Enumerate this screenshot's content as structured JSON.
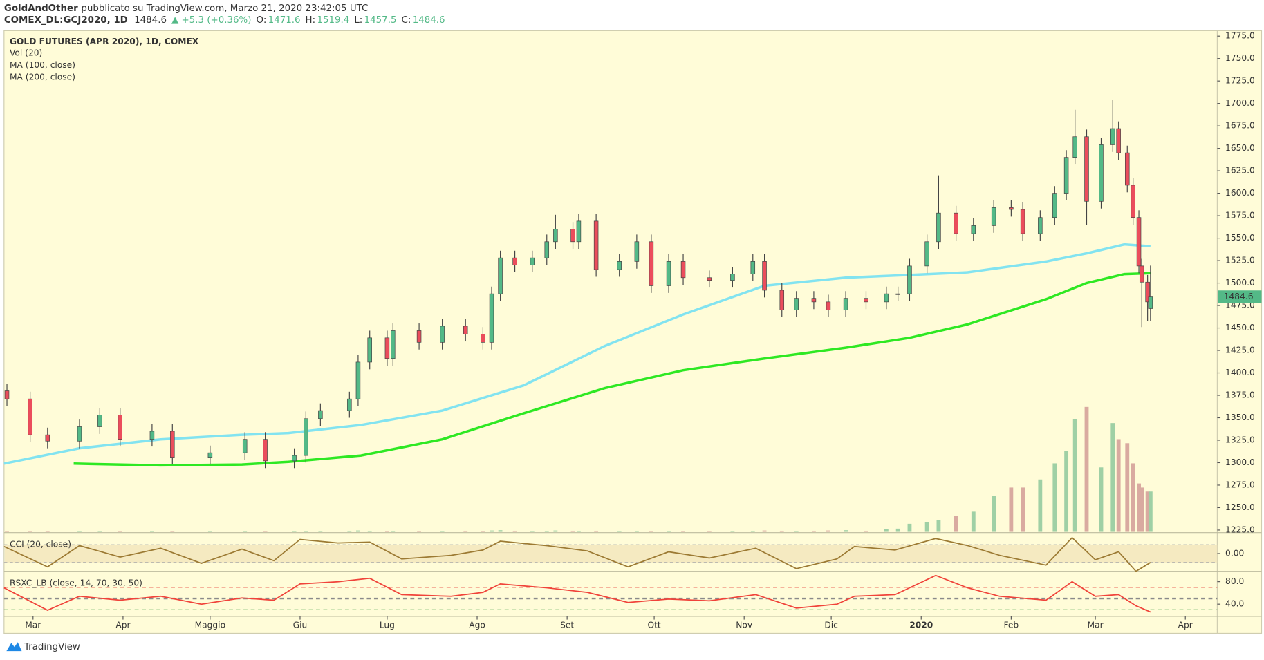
{
  "header": {
    "author": "GoldAndOther",
    "published": "pubblicato su TradingView.com, Marzo 21, 2020 23:42:05 UTC",
    "symbol": "COMEX_DL:GCJ2020, 1D",
    "change": "▲ +5.3 (+0.36%)",
    "ohlc_labels": [
      "O:",
      "H:",
      "L:",
      "C:"
    ]
  },
  "footer": {
    "brand": "TradingView"
  },
  "chart_data": [
    {
      "type": "candlestick",
      "title": "GOLD FUTURES (APR 2020), 1D, COMEX",
      "volume_label": "Vol (20)",
      "x": [
        -9,
        -1,
        5,
        16,
        23,
        30,
        41,
        48,
        61,
        73,
        80,
        90,
        94,
        99,
        109,
        112,
        116,
        122,
        124,
        133,
        141,
        149,
        155,
        158,
        161,
        166,
        172,
        177,
        180,
        186,
        188,
        194,
        202,
        208,
        213,
        219,
        224,
        233,
        241,
        248,
        252,
        258,
        263,
        269,
        274,
        280,
        287,
        294,
        298,
        302,
        308,
        312,
        318,
        324,
        331,
        337,
        341,
        347,
        352,
        356,
        359,
        363,
        368,
        372,
        374,
        377,
        379,
        381,
        382,
        384,
        385
      ],
      "open": [
        1380,
        1371,
        1331,
        1324,
        1340,
        1353,
        1326,
        1335,
        1306,
        1311,
        1326,
        1302,
        1308,
        1349,
        1358,
        1371,
        1412,
        1439,
        1416,
        1447,
        1434,
        1452,
        1443,
        1434,
        1488,
        1528,
        1520,
        1528,
        1546,
        1560,
        1546,
        1569,
        1515,
        1524,
        1546,
        1497,
        1524,
        1506,
        1503,
        1510,
        1524,
        1492,
        1470,
        1483,
        1479,
        1470,
        1483,
        1479,
        1488,
        1488,
        1519,
        1546,
        1578,
        1555,
        1564,
        1584,
        1582,
        1555,
        1573,
        1600,
        1640,
        1663,
        1591,
        1654,
        1672,
        1645,
        1609,
        1573,
        1519,
        1501,
        1471.6
      ],
      "high": [
        1388,
        1379,
        1339,
        1348,
        1361,
        1361,
        1343,
        1343,
        1319,
        1334,
        1334,
        1316,
        1357,
        1366,
        1379,
        1420,
        1447,
        1447,
        1455,
        1455,
        1460,
        1460,
        1451,
        1496,
        1536,
        1536,
        1536,
        1554,
        1576,
        1568,
        1577,
        1577,
        1532,
        1554,
        1554,
        1532,
        1532,
        1514,
        1518,
        1532,
        1532,
        1500,
        1491,
        1491,
        1487,
        1491,
        1491,
        1496,
        1496,
        1527,
        1554,
        1620,
        1586,
        1572,
        1592,
        1592,
        1590,
        1581,
        1608,
        1648,
        1693,
        1671,
        1662,
        1704,
        1680,
        1653,
        1617,
        1581,
        1527,
        1509,
        1519.4
      ],
      "low": [
        1363,
        1323,
        1316,
        1316,
        1332,
        1318,
        1318,
        1298,
        1298,
        1303,
        1294,
        1294,
        1300,
        1341,
        1350,
        1363,
        1404,
        1408,
        1408,
        1426,
        1426,
        1435,
        1426,
        1426,
        1480,
        1512,
        1512,
        1520,
        1538,
        1538,
        1538,
        1507,
        1507,
        1516,
        1489,
        1489,
        1498,
        1495,
        1495,
        1502,
        1484,
        1462,
        1462,
        1471,
        1462,
        1462,
        1471,
        1471,
        1480,
        1480,
        1511,
        1538,
        1547,
        1547,
        1556,
        1574,
        1547,
        1547,
        1565,
        1592,
        1632,
        1565,
        1583,
        1646,
        1637,
        1601,
        1565,
        1511,
        1451,
        1458,
        1457.5
      ],
      "close": [
        1371,
        1331,
        1324,
        1340,
        1353,
        1326,
        1335,
        1306,
        1311,
        1326,
        1302,
        1308,
        1349,
        1358,
        1371,
        1412,
        1439,
        1416,
        1447,
        1434,
        1452,
        1443,
        1434,
        1488,
        1528,
        1520,
        1528,
        1546,
        1560,
        1546,
        1569,
        1515,
        1524,
        1546,
        1497,
        1524,
        1506,
        1503,
        1510,
        1524,
        1492,
        1470,
        1483,
        1479,
        1470,
        1483,
        1479,
        1488,
        1488,
        1519,
        1546,
        1578,
        1555,
        1564,
        1584,
        1582,
        1555,
        1573,
        1600,
        1640,
        1663,
        1591,
        1654,
        1672,
        1645,
        1609,
        1573,
        1519,
        1501,
        1479,
        1484.6
      ],
      "volume": [
        3,
        2,
        2,
        3,
        3,
        2,
        3,
        2,
        3,
        2,
        3,
        2,
        3,
        3,
        4,
        5,
        4,
        3,
        4,
        3,
        3,
        4,
        3,
        5,
        6,
        4,
        3,
        4,
        5,
        4,
        4,
        4,
        3,
        4,
        3,
        3,
        3,
        3,
        3,
        4,
        5,
        4,
        3,
        4,
        5,
        6,
        4,
        10,
        12,
        30,
        36,
        45,
        60,
        75,
        135,
        165,
        165,
        195,
        255,
        300,
        420,
        465,
        240,
        405,
        345,
        330,
        255,
        180,
        165,
        150,
        150
      ],
      "up_color": "#53b987",
      "down_color": "#eb4d5c",
      "volume_up_color": "#9fd0a5",
      "volume_down_color": "#d9aaa0",
      "overlays": [
        {
          "name": "MA (100, close)",
          "color": "#82e3f0",
          "x": [
            -10,
            16,
            44,
            72,
            88,
            113,
            141,
            169,
            197,
            224,
            252,
            280,
            302,
            322,
            349,
            363,
            376,
            385
          ],
          "values": [
            1299,
            1316,
            1326,
            1331,
            1333,
            1342,
            1358,
            1386,
            1430,
            1465,
            1497,
            1506,
            1509,
            1512,
            1524,
            1533,
            1543,
            1541
          ]
        },
        {
          "name": "MA (200, close)",
          "color": "#2ee823",
          "x": [
            14,
            44,
            72,
            88,
            113,
            141,
            169,
            197,
            224,
            252,
            280,
            302,
            322,
            349,
            363,
            376,
            385
          ],
          "values": [
            1299,
            1297,
            1298,
            1301,
            1308,
            1326,
            1355,
            1383,
            1403,
            1416,
            1428,
            1439,
            1454,
            1482,
            1500,
            1510,
            1511
          ]
        }
      ],
      "xlim": [
        -10,
        408
      ],
      "xticks": [
        {
          "value": 0,
          "label": "Mar"
        },
        {
          "value": 31,
          "label": "Apr"
        },
        {
          "value": 61,
          "label": "Maggio"
        },
        {
          "value": 92,
          "label": "Giu"
        },
        {
          "value": 122,
          "label": "Lug"
        },
        {
          "value": 153,
          "label": "Ago"
        },
        {
          "value": 184,
          "label": "Set"
        },
        {
          "value": 214,
          "label": "Ott"
        },
        {
          "value": 245,
          "label": "Nov"
        },
        {
          "value": 275,
          "label": "Dic"
        },
        {
          "value": 306,
          "label": "2020"
        },
        {
          "value": 337,
          "label": "Feb"
        },
        {
          "value": 366,
          "label": "Mar"
        },
        {
          "value": 397,
          "label": "Apr"
        }
      ],
      "ylim": [
        1223,
        1781
      ],
      "yticks": [
        {
          "value": 1225,
          "label": "1225.0"
        },
        {
          "value": 1250,
          "label": "1250.0"
        },
        {
          "value": 1275,
          "label": "1275.0"
        },
        {
          "value": 1300,
          "label": "1300.0"
        },
        {
          "value": 1325,
          "label": "1325.0"
        },
        {
          "value": 1350,
          "label": "1350.0"
        },
        {
          "value": 1375,
          "label": "1375.0"
        },
        {
          "value": 1400,
          "label": "1400.0"
        },
        {
          "value": 1425,
          "label": "1425.0"
        },
        {
          "value": 1450,
          "label": "1450.0"
        },
        {
          "value": 1475,
          "label": "1475.0"
        },
        {
          "value": 1500,
          "label": "1500.0"
        },
        {
          "value": 1525,
          "label": "1525.0"
        },
        {
          "value": 1550,
          "label": "1550.0"
        },
        {
          "value": 1575,
          "label": "1575.0"
        },
        {
          "value": 1600,
          "label": "1600.0"
        },
        {
          "value": 1625,
          "label": "1625.0"
        },
        {
          "value": 1650,
          "label": "1650.0"
        },
        {
          "value": 1675,
          "label": "1675.0"
        },
        {
          "value": 1700,
          "label": "1700.0"
        },
        {
          "value": 1725,
          "label": "1725.0"
        },
        {
          "value": 1750,
          "label": "1750.0"
        },
        {
          "value": 1775,
          "label": "1775.0"
        }
      ]
    },
    {
      "type": "line",
      "title": "CCI (20, close)",
      "color": "#9c7a33",
      "x": [
        -10,
        5,
        16,
        30,
        44,
        58,
        72,
        83,
        92,
        105,
        116,
        127,
        144,
        155,
        161,
        177,
        191,
        205,
        219,
        233,
        249,
        263,
        277,
        283,
        297,
        311,
        322,
        333,
        349,
        358,
        366,
        374,
        380,
        385
      ],
      "values": [
        80,
        -150,
        90,
        -40,
        60,
        -110,
        50,
        -80,
        160,
        120,
        130,
        -60,
        -20,
        40,
        140,
        90,
        30,
        -150,
        20,
        -50,
        60,
        -170,
        -60,
        80,
        40,
        170,
        90,
        -20,
        -130,
        180,
        -70,
        20,
        -200,
        -100
      ],
      "ylim": [
        -191,
        227
      ],
      "yticks": [
        {
          "value": 0,
          "label": "0.00"
        }
      ],
      "band": [
        -100,
        100
      ],
      "band_color": "#f1e3b8"
    },
    {
      "type": "line",
      "title": "RSXC_LB (close, 14, 70, 30, 50)",
      "color": "#f0433a",
      "x": [
        -10,
        5,
        16,
        30,
        44,
        58,
        72,
        83,
        92,
        105,
        116,
        127,
        144,
        155,
        161,
        177,
        191,
        205,
        219,
        233,
        249,
        263,
        277,
        283,
        297,
        311,
        322,
        333,
        349,
        358,
        366,
        374,
        380,
        385
      ],
      "values": [
        69,
        29,
        54,
        47,
        54,
        40,
        51,
        47,
        76,
        80,
        86,
        57,
        54,
        61,
        76,
        69,
        61,
        43,
        49,
        46,
        57,
        33,
        40,
        54,
        57,
        91,
        69,
        54,
        47,
        80,
        54,
        57,
        37,
        26
      ],
      "ylim": [
        21,
        97
      ],
      "yticks": [
        {
          "value": 80,
          "label": "80.0"
        },
        {
          "value": 40,
          "label": "40.0"
        }
      ],
      "levels": [
        {
          "value": 70,
          "color": "#e53935"
        },
        {
          "value": 50,
          "color": "#8a8a8a"
        },
        {
          "value": 30,
          "color": "#43a047"
        }
      ]
    }
  ]
}
